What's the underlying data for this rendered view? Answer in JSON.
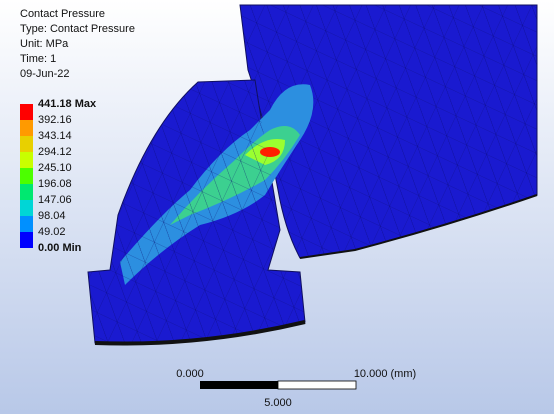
{
  "header": {
    "lines": [
      "Contact Pressure",
      "Type: Contact Pressure",
      "Unit: MPa",
      "Time: 1",
      "09-Jun-22"
    ]
  },
  "legend": {
    "items": [
      {
        "label": "441.18 Max",
        "color": "#ff0000"
      },
      {
        "label": "392.16",
        "color": "#ff9a00"
      },
      {
        "label": "343.14",
        "color": "#e8d000"
      },
      {
        "label": "294.12",
        "color": "#c8ff00"
      },
      {
        "label": "245.10",
        "color": "#4cff00"
      },
      {
        "label": "196.08",
        "color": "#00e870"
      },
      {
        "label": "147.06",
        "color": "#00d6d6"
      },
      {
        "label": "98.04",
        "color": "#0090ff"
      },
      {
        "label": "49.02",
        "color": "#0000ff"
      },
      {
        "label": "0.00 Min"
      }
    ]
  },
  "scale_bar": {
    "start": "0.000",
    "end": "10.000 (mm)",
    "middle": "5.000"
  }
}
